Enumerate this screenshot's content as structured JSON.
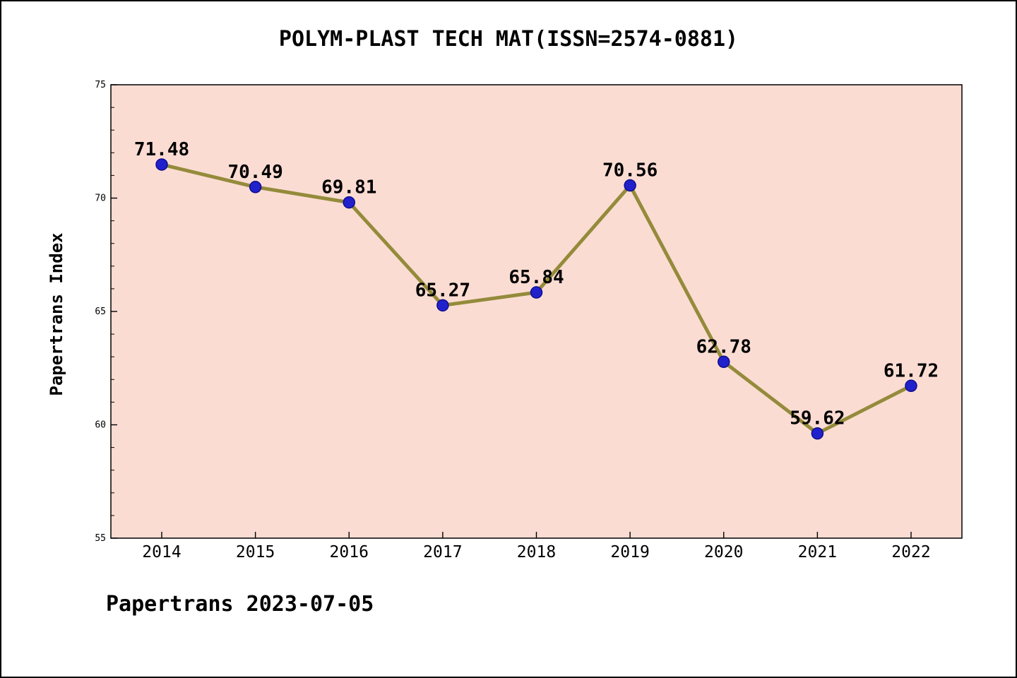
{
  "title": "POLYM-PLAST TECH MAT(ISSN=2574-0881)",
  "footer": "Papertrans 2023-07-05",
  "chart_data": {
    "type": "line",
    "title": "POLYM-PLAST TECH MAT(ISSN=2574-0881)",
    "x": [
      2014,
      2015,
      2016,
      2017,
      2018,
      2019,
      2020,
      2021,
      2022
    ],
    "series": [
      {
        "name": "Papertrans Index",
        "values": [
          71.48,
          70.49,
          69.81,
          65.27,
          65.84,
          70.56,
          62.78,
          59.62,
          61.72
        ]
      }
    ],
    "point_labels": [
      "71.48",
      "70.49",
      "69.81",
      "65.27",
      "65.84",
      "70.56",
      "62.78",
      "59.62",
      "61.72"
    ],
    "xlabel": "",
    "ylabel": "Papertrans Index",
    "ylim": [
      55,
      75
    ],
    "y_major_ticks": [
      55,
      60,
      65,
      70,
      75
    ],
    "y_minor_tick_step": 1,
    "grid": false,
    "legend": "none",
    "annotation": "Papertrans 2023-07-05",
    "colors": {
      "plot_background": "#fbdcd3",
      "page_background": "#ffffff",
      "line": "#948b3b",
      "marker_fill": "#2121cc",
      "marker_edge": "#0d0d8f",
      "axis": "#000000",
      "text": "#000000"
    }
  }
}
